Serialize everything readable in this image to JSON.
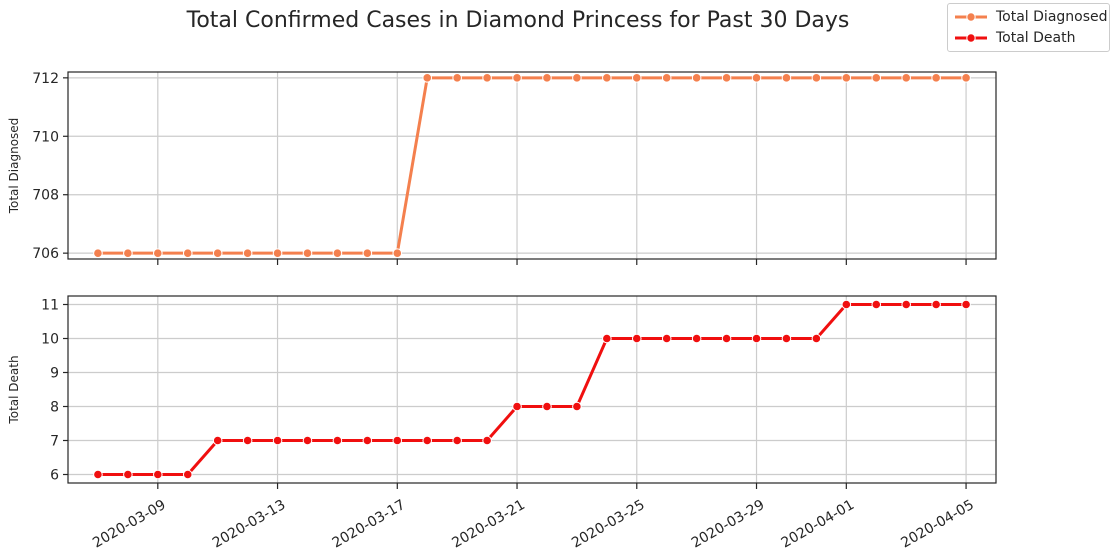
{
  "title": "Total Confirmed Cases in Diamond Princess for Past 30 Days",
  "legend": {
    "position": "top-right",
    "items": [
      {
        "label": "Total Diagnosed",
        "color": "#F4804E"
      },
      {
        "label": "Total Death",
        "color": "#F00F0F"
      }
    ]
  },
  "chart_data": [
    {
      "type": "line",
      "ylabel": "Total Diagnosed",
      "color": "#F4804E",
      "yticks": [
        706,
        708,
        710,
        712
      ],
      "ylim": [
        705.8,
        712.2
      ],
      "xlim": [
        "2020-03-06",
        "2020-04-06"
      ],
      "grid": true,
      "series": [
        {
          "name": "Total Diagnosed",
          "x": [
            "2020-03-07",
            "2020-03-08",
            "2020-03-09",
            "2020-03-10",
            "2020-03-11",
            "2020-03-12",
            "2020-03-13",
            "2020-03-14",
            "2020-03-15",
            "2020-03-16",
            "2020-03-17",
            "2020-03-18",
            "2020-03-19",
            "2020-03-20",
            "2020-03-21",
            "2020-03-22",
            "2020-03-23",
            "2020-03-24",
            "2020-03-25",
            "2020-03-26",
            "2020-03-27",
            "2020-03-28",
            "2020-03-29",
            "2020-03-30",
            "2020-03-31",
            "2020-04-01",
            "2020-04-02",
            "2020-04-03",
            "2020-04-04",
            "2020-04-05"
          ],
          "values": [
            706,
            706,
            706,
            706,
            706,
            706,
            706,
            706,
            706,
            706,
            706,
            712,
            712,
            712,
            712,
            712,
            712,
            712,
            712,
            712,
            712,
            712,
            712,
            712,
            712,
            712,
            712,
            712,
            712,
            712
          ]
        }
      ]
    },
    {
      "type": "line",
      "ylabel": "Total Death",
      "color": "#F00F0F",
      "yticks": [
        6,
        7,
        8,
        9,
        10,
        11
      ],
      "ylim": [
        5.75,
        11.25
      ],
      "xlim": [
        "2020-03-06",
        "2020-04-06"
      ],
      "grid": true,
      "xticks": [
        "2020-03-09",
        "2020-03-13",
        "2020-03-17",
        "2020-03-21",
        "2020-03-25",
        "2020-03-29",
        "2020-04-01",
        "2020-04-05"
      ],
      "series": [
        {
          "name": "Total Death",
          "x": [
            "2020-03-07",
            "2020-03-08",
            "2020-03-09",
            "2020-03-10",
            "2020-03-11",
            "2020-03-12",
            "2020-03-13",
            "2020-03-14",
            "2020-03-15",
            "2020-03-16",
            "2020-03-17",
            "2020-03-18",
            "2020-03-19",
            "2020-03-20",
            "2020-03-21",
            "2020-03-22",
            "2020-03-23",
            "2020-03-24",
            "2020-03-25",
            "2020-03-26",
            "2020-03-27",
            "2020-03-28",
            "2020-03-29",
            "2020-03-30",
            "2020-03-31",
            "2020-04-01",
            "2020-04-02",
            "2020-04-03",
            "2020-04-04",
            "2020-04-05"
          ],
          "values": [
            6,
            6,
            6,
            6,
            7,
            7,
            7,
            7,
            7,
            7,
            7,
            7,
            7,
            7,
            8,
            8,
            8,
            10,
            10,
            10,
            10,
            10,
            10,
            10,
            10,
            11,
            11,
            11,
            11,
            11
          ]
        }
      ]
    }
  ]
}
